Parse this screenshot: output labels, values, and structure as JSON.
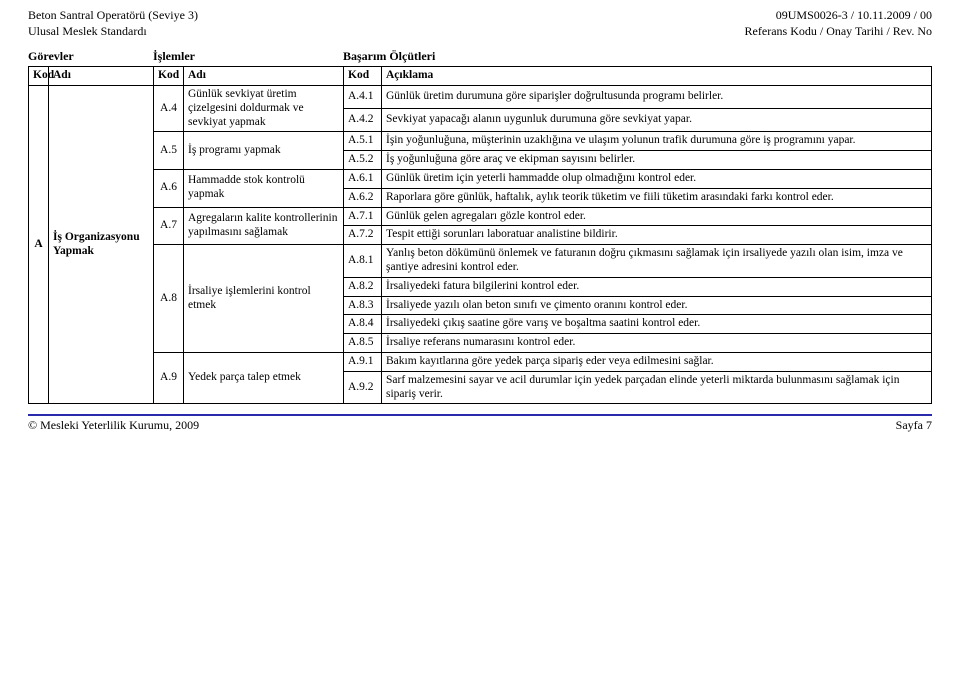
{
  "header": {
    "left1": "Beton Santral Operatörü (Seviye 3)",
    "left2": "Ulusal Meslek Standardı",
    "right1": "09UMS0026-3 / 10.11.2009 / 00",
    "right2": "Referans Kodu / Onay Tarihi / Rev. No"
  },
  "section": {
    "gorevler": "Görevler",
    "islemler": "İşlemler",
    "basarim": "Başarım Ölçütleri"
  },
  "tbl": {
    "h": {
      "kod1": "Kod",
      "adi1": "Adı",
      "kod2": "Kod",
      "adi2": "Adı",
      "kod3": "Kod",
      "aciklama": "Açıklama"
    },
    "gA": {
      "kod": "A",
      "adi": "İş Organizasyonu Yapmak"
    },
    "ops": {
      "A4": {
        "kod": "A.4",
        "adi": "Günlük sevkiyat üretim çizelgesini doldurmak ve sevkiyat yapmak"
      },
      "A5": {
        "kod": "A.5",
        "adi": "İş programı yapmak"
      },
      "A6": {
        "kod": "A.6",
        "adi": "Hammadde stok kontrolü yapmak"
      },
      "A7": {
        "kod": "A.7",
        "adi": "Agregaların kalite kontrollerinin yapılmasını sağlamak"
      },
      "A8": {
        "kod": "A.8",
        "adi": "İrsaliye işlemlerini kontrol etmek"
      },
      "A9": {
        "kod": "A.9",
        "adi": "Yedek parça talep etmek"
      }
    },
    "crit": {
      "A41": {
        "k": "A.4.1",
        "t": "Günlük üretim durumuna göre siparişler doğrultusunda programı belirler."
      },
      "A42": {
        "k": "A.4.2",
        "t": "Sevkiyat yapacağı alanın uygunluk durumuna göre sevkiyat yapar."
      },
      "A51": {
        "k": "A.5.1",
        "t": "İşin yoğunluğuna, müşterinin uzaklığına ve ulaşım yolunun trafik durumuna göre iş programını yapar."
      },
      "A52": {
        "k": "A.5.2",
        "t": "İş yoğunluğuna göre araç ve ekipman sayısını belirler."
      },
      "A61": {
        "k": "A.6.1",
        "t": "Günlük üretim için yeterli hammadde olup olmadığını kontrol eder."
      },
      "A62": {
        "k": "A.6.2",
        "t": "Raporlara göre günlük, haftalık, aylık teorik tüketim ve fiili tüketim arasındaki farkı kontrol eder."
      },
      "A71": {
        "k": "A.7.1",
        "t": "Günlük gelen agregaları gözle kontrol eder."
      },
      "A72": {
        "k": "A.7.2",
        "t": "Tespit ettiği sorunları laboratuar analisti​ne bildirir."
      },
      "A81": {
        "k": "A.8.1",
        "t": "Yanlış beton dökümünü önlemek ve faturanın doğru çıkmasını sağlamak için irsaliyede yazılı olan isim, imza ve şantiye adresini kontrol eder."
      },
      "A82": {
        "k": "A.8.2",
        "t": "İrsaliyedeki fatura bilgilerini kontrol eder."
      },
      "A83": {
        "k": "A.8.3",
        "t": "İrsaliyede yazılı olan beton sınıfı ve çimento oranını kontrol eder."
      },
      "A84": {
        "k": "A.8.4",
        "t": "İrsaliyedeki çıkış saatine göre varış ve boşaltma saatini kontrol eder."
      },
      "A85": {
        "k": "A.8.5",
        "t": "İrsaliye referans numarasını kontrol eder."
      },
      "A91": {
        "k": "A.9.1",
        "t": "Bakım kayıtlarına göre yedek parça sipariş eder veya edilmesini sağlar."
      },
      "A92": {
        "k": "A.9.2",
        "t": "Sarf malzemesini sayar ve acil durumlar için yedek parçadan elinde yeterli miktarda bulunmasını sağlamak için sipariş verir."
      }
    }
  },
  "footer": {
    "left": "© Mesleki Yeterlilik Kurumu, 2009",
    "right": "Sayfa 7"
  }
}
